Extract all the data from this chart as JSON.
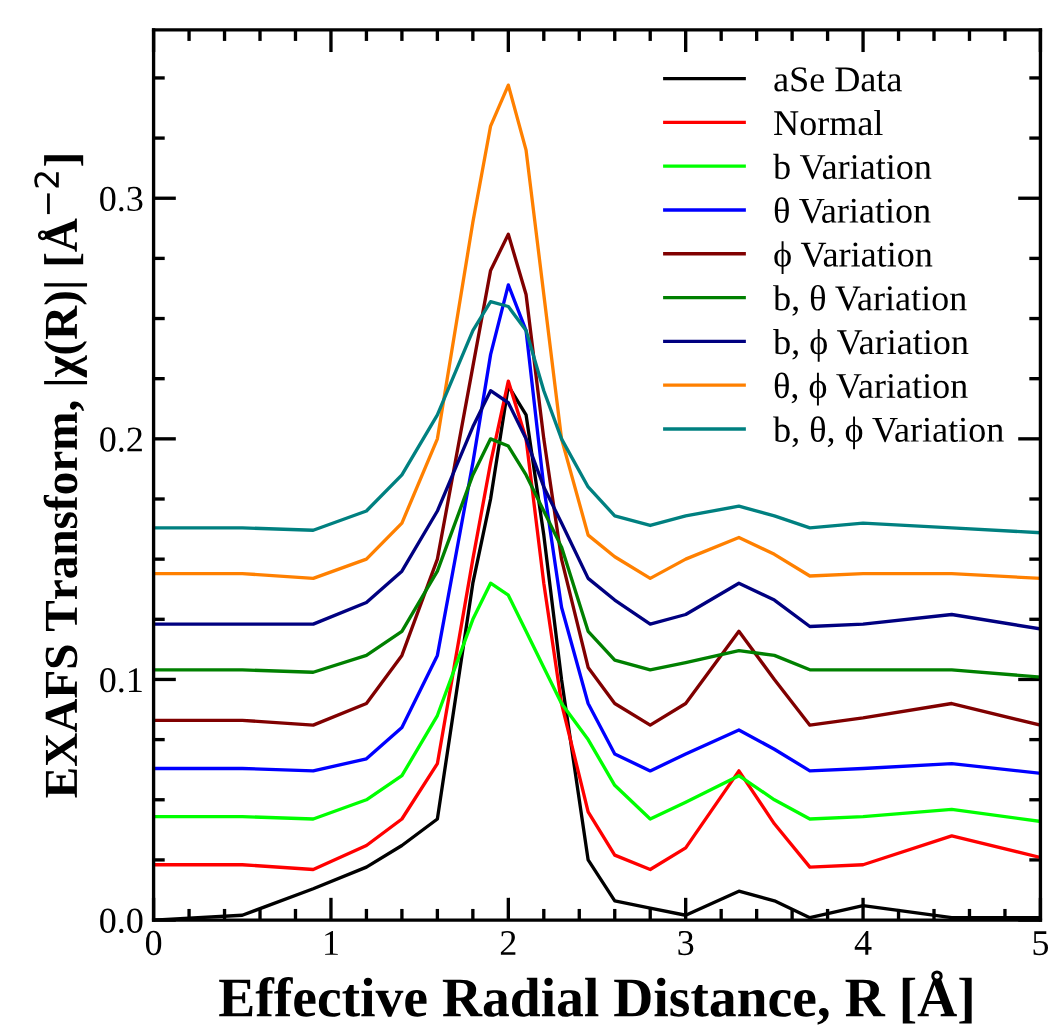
{
  "chart_data": {
    "type": "line",
    "xlabel": "Effective Radial Distance, R [Å]",
    "ylabel": "EXAFS Transform, |χ(R)| [Å$^{−2}$]",
    "x": [
      0,
      0.5,
      0.9,
      1.2,
      1.4,
      1.6,
      1.8,
      1.9,
      2.0,
      2.1,
      2.2,
      2.3,
      2.45,
      2.6,
      2.8,
      3.0,
      3.3,
      3.5,
      3.7,
      4.0,
      4.5,
      5.0
    ],
    "xlim": [
      0,
      5
    ],
    "xticks": [
      0,
      1,
      2,
      3,
      4,
      5
    ],
    "ylim": [
      0,
      0.37
    ],
    "yticks": [
      {
        "value": 0,
        "label": "0.0"
      },
      0.1,
      0.2,
      0.3
    ],
    "legend": "top right",
    "grid": false,
    "marker": "none",
    "line_style": "solid",
    "series": [
      {
        "name": "aSe Data",
        "color": "#000000",
        "values": [
          0,
          0.002,
          0.013,
          0.022,
          0.031,
          0.042,
          0.14,
          0.175,
          0.222,
          0.21,
          0.16,
          0.1,
          0.025,
          0.008,
          0.005,
          0.002,
          0.012,
          0.008,
          0.001,
          0.006,
          0.001,
          0.001
        ]
      },
      {
        "name": "Normal",
        "color": "#ff0000",
        "values": [
          0.023,
          0.023,
          0.021,
          0.031,
          0.042,
          0.065,
          0.15,
          0.19,
          0.224,
          0.2,
          0.14,
          0.09,
          0.045,
          0.027,
          0.021,
          0.03,
          0.062,
          0.04,
          0.022,
          0.023,
          0.035,
          0.026
        ]
      },
      {
        "name": "b Variation",
        "color": "#00ff00",
        "values": [
          0.043,
          0.043,
          0.042,
          0.05,
          0.06,
          0.085,
          0.125,
          0.14,
          0.135,
          0.12,
          0.105,
          0.09,
          0.075,
          0.056,
          0.042,
          0.049,
          0.06,
          0.05,
          0.042,
          0.043,
          0.046,
          0.041
        ]
      },
      {
        "name": "θ Variation",
        "color": "#0000ff",
        "values": [
          0.063,
          0.063,
          0.062,
          0.067,
          0.08,
          0.11,
          0.19,
          0.235,
          0.264,
          0.245,
          0.18,
          0.13,
          0.09,
          0.069,
          0.062,
          0.069,
          0.079,
          0.071,
          0.062,
          0.063,
          0.065,
          0.061
        ]
      },
      {
        "name": "ϕ Variation",
        "color": "#800000",
        "values": [
          0.083,
          0.083,
          0.081,
          0.09,
          0.11,
          0.15,
          0.23,
          0.27,
          0.285,
          0.26,
          0.2,
          0.15,
          0.105,
          0.09,
          0.081,
          0.09,
          0.12,
          0.1,
          0.081,
          0.084,
          0.09,
          0.081
        ]
      },
      {
        "name": "b, θ Variation",
        "color": "#008000",
        "values": [
          0.104,
          0.104,
          0.103,
          0.11,
          0.12,
          0.145,
          0.185,
          0.2,
          0.197,
          0.185,
          0.17,
          0.155,
          0.12,
          0.108,
          0.104,
          0.107,
          0.112,
          0.11,
          0.104,
          0.104,
          0.104,
          0.101
        ]
      },
      {
        "name": "b, ϕ Variation",
        "color": "#000080",
        "values": [
          0.123,
          0.123,
          0.123,
          0.132,
          0.145,
          0.17,
          0.205,
          0.22,
          0.215,
          0.2,
          0.18,
          0.165,
          0.142,
          0.133,
          0.123,
          0.127,
          0.14,
          0.133,
          0.122,
          0.123,
          0.127,
          0.121
        ]
      },
      {
        "name": "θ, ϕ Variation",
        "color": "#ff8000",
        "values": [
          0.144,
          0.144,
          0.142,
          0.15,
          0.165,
          0.2,
          0.29,
          0.33,
          0.347,
          0.32,
          0.26,
          0.2,
          0.16,
          0.151,
          0.142,
          0.15,
          0.159,
          0.152,
          0.143,
          0.144,
          0.144,
          0.142
        ]
      },
      {
        "name": "b, θ, ϕ Variation",
        "color": "#008080",
        "values": [
          0.163,
          0.163,
          0.162,
          0.17,
          0.185,
          0.21,
          0.245,
          0.257,
          0.255,
          0.245,
          0.22,
          0.2,
          0.18,
          0.168,
          0.164,
          0.168,
          0.172,
          0.168,
          0.163,
          0.165,
          0.163,
          0.161
        ]
      }
    ]
  }
}
